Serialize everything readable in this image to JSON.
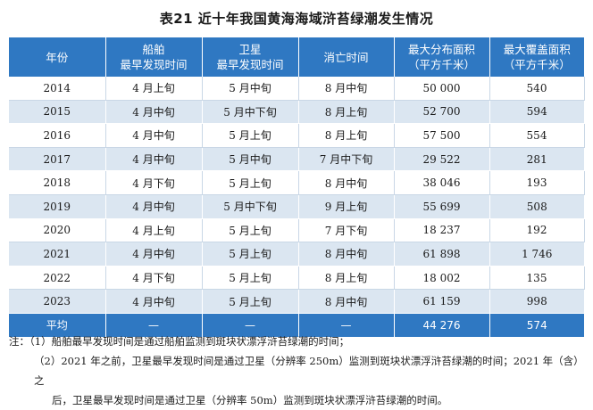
{
  "title": "表21  近十年我国黄海海域浒苔绿潮发生情况",
  "headers": [
    [
      "年份"
    ],
    [
      "船舶",
      "最早发现时间"
    ],
    [
      "卫星",
      "最早发现时间"
    ],
    [
      "消亡时间"
    ],
    [
      "最大分布面积",
      "（平方千米）"
    ],
    [
      "最大覆盖面积",
      "（平方千米）"
    ]
  ],
  "rows": [
    [
      "2014",
      "4 月上旬",
      "5 月中旬",
      "8 月中旬",
      "50 000",
      "540"
    ],
    [
      "2015",
      "4 月中旬",
      "5 月中下旬",
      "8 月上旬",
      "52 700",
      "594"
    ],
    [
      "2016",
      "4 月中旬",
      "5 月上旬",
      "8 月上旬",
      "57 500",
      "554"
    ],
    [
      "2017",
      "4 月中旬",
      "5 月中旬",
      "7 月中下旬",
      "29 522",
      "281"
    ],
    [
      "2018",
      "4 月下旬",
      "5 月上旬",
      "8 月中旬",
      "38 046",
      "193"
    ],
    [
      "2019",
      "4 月中旬",
      "5 月中下旬",
      "9 月上旬",
      "55 699",
      "508"
    ],
    [
      "2020",
      "4 月上旬",
      "5 月上旬",
      "7 月下旬",
      "18 237",
      "192"
    ],
    [
      "2021",
      "4 月中旬",
      "5 月上旬",
      "8 月中旬",
      "61 898",
      "1 746"
    ],
    [
      "2022",
      "4 月下旬",
      "5 月上旬",
      "8 月上旬",
      "18 002",
      "135"
    ],
    [
      "2023",
      "4 月中旬",
      "5 月上旬",
      "8 月中旬",
      "61 159",
      "998"
    ]
  ],
  "average_row": [
    "平均",
    "—",
    "—",
    "—",
    "44 276",
    "574"
  ],
  "notes": [
    "注：（1）船舶最早发现时间是通过船舶监测到斑块状漂浮浒苔绿潮的时间；",
    "（2）2021 年之前，卫星最早发现时间是通过卫星（分辨率 250m）监测到斑块状漂浮浒苔绿潮的时间；2021 年（含）之",
    "后，卫星最早发现时间是通过卫星（分辨率 50m）监测到斑块状漂浮浒苔绿潮的时间。"
  ]
}
